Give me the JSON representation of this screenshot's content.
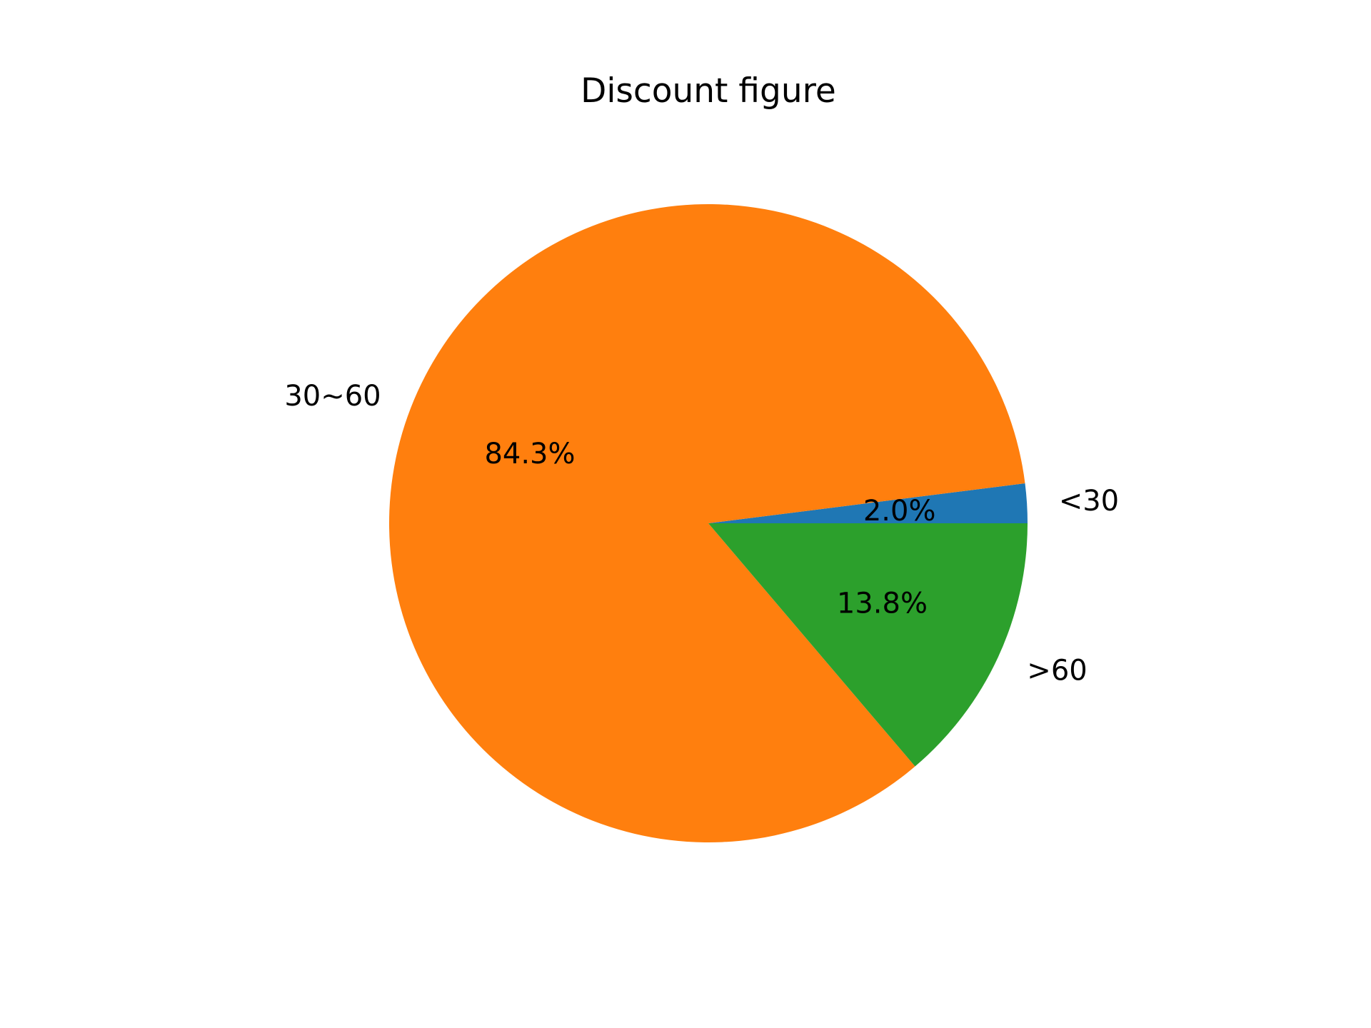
{
  "chart_data": {
    "type": "pie",
    "title": "Discount figure",
    "categories": [
      "<30",
      "30~60",
      ">60"
    ],
    "values": [
      2.0,
      84.3,
      13.8
    ],
    "pct_labels": [
      "2.0%",
      "84.3%",
      "13.8%"
    ],
    "colors": [
      "#1f77b4",
      "#ff7f0e",
      "#2ca02c"
    ],
    "start_angle_deg": 0,
    "direction": "counterclockwise",
    "legend": "none"
  }
}
